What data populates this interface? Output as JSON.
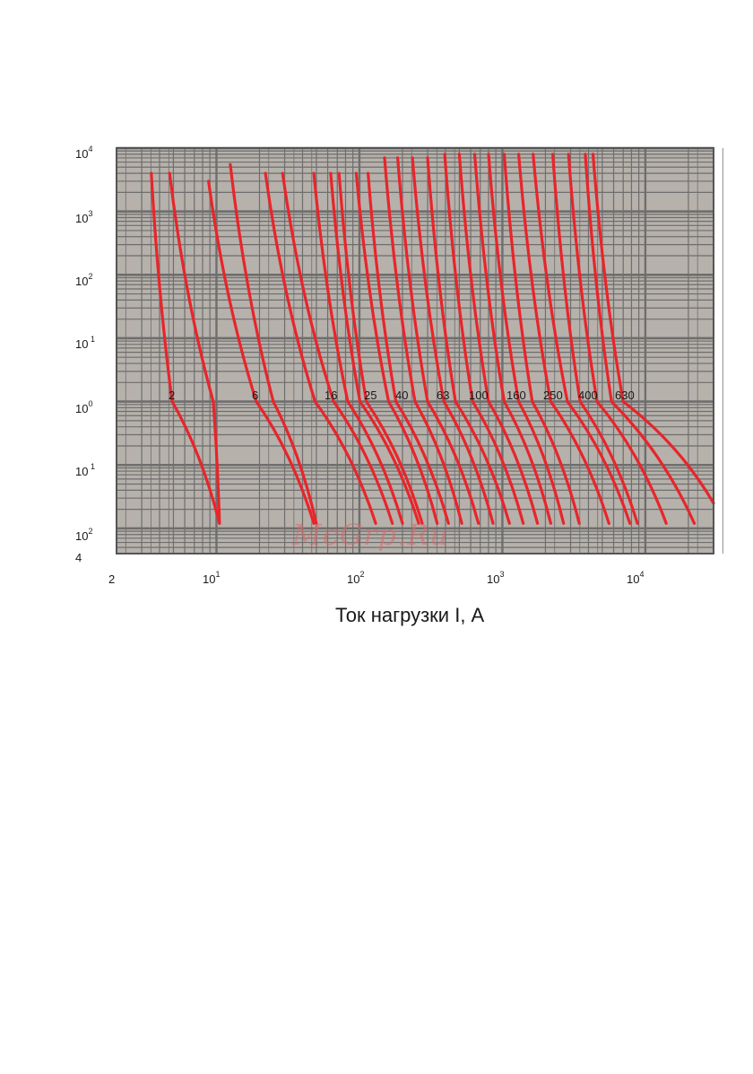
{
  "watermark": "McGrp.Ru",
  "chart_data": {
    "type": "line",
    "title": "",
    "xlabel": "Ток нагрузки  I, А",
    "ylabel": "",
    "x_scale": "log",
    "y_scale": "log",
    "xlim": [
      2,
      30000
    ],
    "ylim": [
      0.01,
      10000
    ],
    "grid": true,
    "legend": "none",
    "colors": {
      "plot_bg": "#b6b1ab",
      "grid": "#6e6e6e",
      "curve": "#e8252b",
      "frame": "#555555"
    },
    "x_ticks": [
      {
        "base": "2",
        "exp": ""
      },
      {
        "base": "10",
        "exp": "1"
      },
      {
        "base": "10",
        "exp": "2"
      },
      {
        "base": "10",
        "exp": "3"
      },
      {
        "base": "10",
        "exp": "4"
      }
    ],
    "y_ticks": [
      {
        "base": "10",
        "exp": "4"
      },
      {
        "base": "10",
        "exp": "3"
      },
      {
        "base": "10",
        "exp": "2"
      },
      {
        "base": "10",
        "exp": " 1"
      },
      {
        "base": "10",
        "exp": "0"
      },
      {
        "base": "10",
        "exp": " 1"
      },
      {
        "base": "10",
        "exp": "2"
      },
      {
        "base": "4",
        "exp": ""
      }
    ],
    "series": [
      {
        "name": "2",
        "lo": [
          [
            3.5,
            4000
          ],
          [
            4.9,
            1
          ],
          [
            10.5,
            0.012
          ]
        ],
        "hi": [
          [
            4.7,
            4000
          ],
          [
            9.5,
            1
          ],
          [
            10.5,
            0.012
          ]
        ]
      },
      {
        "name": "6",
        "lo": [
          [
            8.8,
            3000
          ],
          [
            19,
            1
          ],
          [
            48,
            0.012
          ]
        ],
        "hi": [
          [
            12.5,
            5500
          ],
          [
            25,
            1
          ],
          [
            50,
            0.012
          ]
        ]
      },
      {
        "name": "16",
        "lo": [
          [
            22,
            4000
          ],
          [
            49,
            1
          ],
          [
            130,
            0.012
          ]
        ],
        "hi": [
          [
            29,
            4000
          ],
          [
            66,
            1
          ],
          [
            170,
            0.012
          ]
        ]
      },
      {
        "name": "25",
        "lo": [
          [
            48,
            4000
          ],
          [
            83,
            1
          ],
          [
            200,
            0.012
          ]
        ],
        "hi": [
          [
            63,
            4000
          ],
          [
            101,
            1
          ],
          [
            260,
            0.012
          ]
        ]
      },
      {
        "name": "40",
        "lo": [
          [
            72,
            4000
          ],
          [
            112,
            1
          ],
          [
            275,
            0.012
          ]
        ],
        "hi": [
          [
            95,
            4000
          ],
          [
            160,
            1
          ],
          [
            350,
            0.012
          ]
        ]
      },
      {
        "name": "63",
        "lo": [
          [
            115,
            4000
          ],
          [
            180,
            1
          ],
          [
            420,
            0.012
          ]
        ],
        "hi": [
          [
            150,
            7000
          ],
          [
            245,
            1
          ],
          [
            520,
            0.012
          ]
        ]
      },
      {
        "name": "100",
        "lo": [
          [
            185,
            7000
          ],
          [
            300,
            1
          ],
          [
            680,
            0.012
          ]
        ],
        "hi": [
          [
            235,
            7000
          ],
          [
            390,
            1
          ],
          [
            860,
            0.012
          ]
        ]
      },
      {
        "name": "160",
        "lo": [
          [
            300,
            7000
          ],
          [
            470,
            1
          ],
          [
            1120,
            0.012
          ]
        ],
        "hi": [
          [
            395,
            8000
          ],
          [
            620,
            1
          ],
          [
            1400,
            0.012
          ]
        ]
      },
      {
        "name": "250",
        "lo": [
          [
            500,
            8000
          ],
          [
            800,
            1
          ],
          [
            1760,
            0.012
          ]
        ],
        "hi": [
          [
            640,
            8000
          ],
          [
            1030,
            1
          ],
          [
            2180,
            0.012
          ]
        ]
      },
      {
        "name": "400",
        "lo": [
          [
            800,
            8000
          ],
          [
            1300,
            1
          ],
          [
            2680,
            0.012
          ]
        ],
        "hi": [
          [
            1030,
            8000
          ],
          [
            1620,
            1
          ],
          [
            3450,
            0.012
          ]
        ]
      },
      {
        "name": "630",
        "lo": [
          [
            1300,
            8000
          ],
          [
            2180,
            1
          ],
          [
            5560,
            0.012
          ]
        ],
        "hi": [
          [
            1640,
            8000
          ],
          [
            2850,
            1
          ],
          [
            7800,
            0.012
          ]
        ]
      }
    ],
    "bundles": [
      {
        "lo": [
          [
            3.5,
            4000
          ],
          [
            4.9,
            1
          ],
          [
            10.5,
            0.012
          ]
        ],
        "hi": [
          [
            4.7,
            4000
          ],
          [
            9.5,
            1
          ],
          [
            10.5,
            0.012
          ]
        ]
      },
      {
        "lo": [
          [
            8.8,
            3000
          ],
          [
            19,
            1
          ],
          [
            48,
            0.012
          ]
        ],
        "hi": [
          [
            12.5,
            5500
          ],
          [
            25,
            1
          ],
          [
            50,
            0.012
          ]
        ]
      },
      {
        "lo": [
          [
            22,
            4000
          ],
          [
            49,
            1
          ],
          [
            130,
            0.012
          ]
        ],
        "hi": [
          [
            29,
            4000
          ],
          [
            66,
            1
          ],
          [
            170,
            0.012
          ]
        ]
      },
      {
        "lo": [
          [
            48,
            4000
          ],
          [
            83,
            1
          ],
          [
            200,
            0.012
          ]
        ],
        "hi": [
          [
            63,
            4000
          ],
          [
            101,
            1
          ],
          [
            260,
            0.012
          ]
        ]
      },
      {
        "lo": [
          [
            72,
            4000
          ],
          [
            112,
            1
          ],
          [
            275,
            0.012
          ]
        ],
        "hi": [
          [
            95,
            4000
          ],
          [
            160,
            1
          ],
          [
            350,
            0.012
          ]
        ]
      },
      {
        "lo": [
          [
            115,
            4000
          ],
          [
            180,
            1
          ],
          [
            420,
            0.012
          ]
        ],
        "hi": [
          [
            150,
            7000
          ],
          [
            245,
            1
          ],
          [
            520,
            0.012
          ]
        ]
      },
      {
        "lo": [
          [
            185,
            7000
          ],
          [
            300,
            1
          ],
          [
            680,
            0.012
          ]
        ],
        "hi": [
          [
            235,
            7000
          ],
          [
            390,
            1
          ],
          [
            860,
            0.012
          ]
        ]
      },
      {
        "lo": [
          [
            300,
            7000
          ],
          [
            470,
            1
          ],
          [
            1120,
            0.012
          ]
        ],
        "hi": [
          [
            395,
            8000
          ],
          [
            620,
            1
          ],
          [
            1400,
            0.012
          ]
        ]
      },
      {
        "lo": [
          [
            500,
            8000
          ],
          [
            800,
            1
          ],
          [
            1760,
            0.012
          ]
        ],
        "hi": [
          [
            640,
            8000
          ],
          [
            1030,
            1
          ],
          [
            2180,
            0.012
          ]
        ]
      },
      {
        "lo": [
          [
            800,
            8000
          ],
          [
            1300,
            1
          ],
          [
            2680,
            0.012
          ]
        ],
        "hi": [
          [
            1030,
            8000
          ],
          [
            1620,
            1
          ],
          [
            3450,
            0.012
          ]
        ]
      },
      {
        "lo": [
          [
            1300,
            8000
          ],
          [
            2180,
            1
          ],
          [
            5560,
            0.012
          ]
        ],
        "hi": [
          [
            1640,
            8000
          ],
          [
            2850,
            1
          ],
          [
            7800,
            0.012
          ]
        ]
      },
      {
        "lo": [
          [
            2250,
            8000
          ],
          [
            3500,
            1
          ],
          [
            8800,
            0.012
          ]
        ],
        "hi": [
          [
            2900,
            8000
          ],
          [
            4600,
            1
          ],
          [
            14000,
            0.012
          ]
        ]
      },
      {
        "lo": [
          [
            3800,
            8000
          ],
          [
            5800,
            1
          ],
          [
            22000,
            0.012
          ]
        ],
        "hi": [
          [
            4300,
            8000
          ],
          [
            7000,
            1
          ],
          [
            30000,
            0.025
          ]
        ]
      }
    ]
  }
}
